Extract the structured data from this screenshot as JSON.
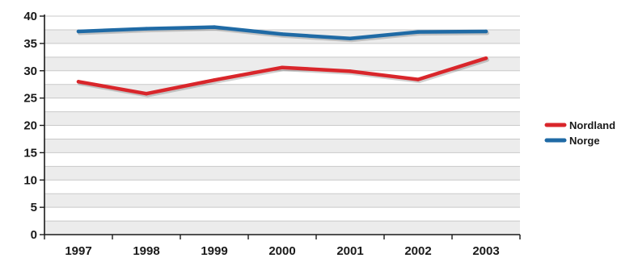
{
  "chart_data": {
    "type": "line",
    "categories": [
      "1997",
      "1998",
      "1999",
      "2000",
      "2001",
      "2002",
      "2003"
    ],
    "series": [
      {
        "name": "Nordland",
        "values": [
          28.0,
          25.8,
          28.3,
          30.6,
          29.9,
          28.4,
          32.3
        ],
        "color": "#d9262b"
      },
      {
        "name": "Norge",
        "values": [
          37.2,
          37.7,
          38.0,
          36.7,
          35.9,
          37.1,
          37.2
        ],
        "color": "#1f6aa5"
      }
    ],
    "ylim": [
      0,
      40
    ],
    "yticks": [
      0,
      5,
      10,
      15,
      20,
      25,
      30,
      35,
      40
    ],
    "grid": true,
    "legend_position": "right",
    "title": "",
    "xlabel": "",
    "ylabel": ""
  }
}
